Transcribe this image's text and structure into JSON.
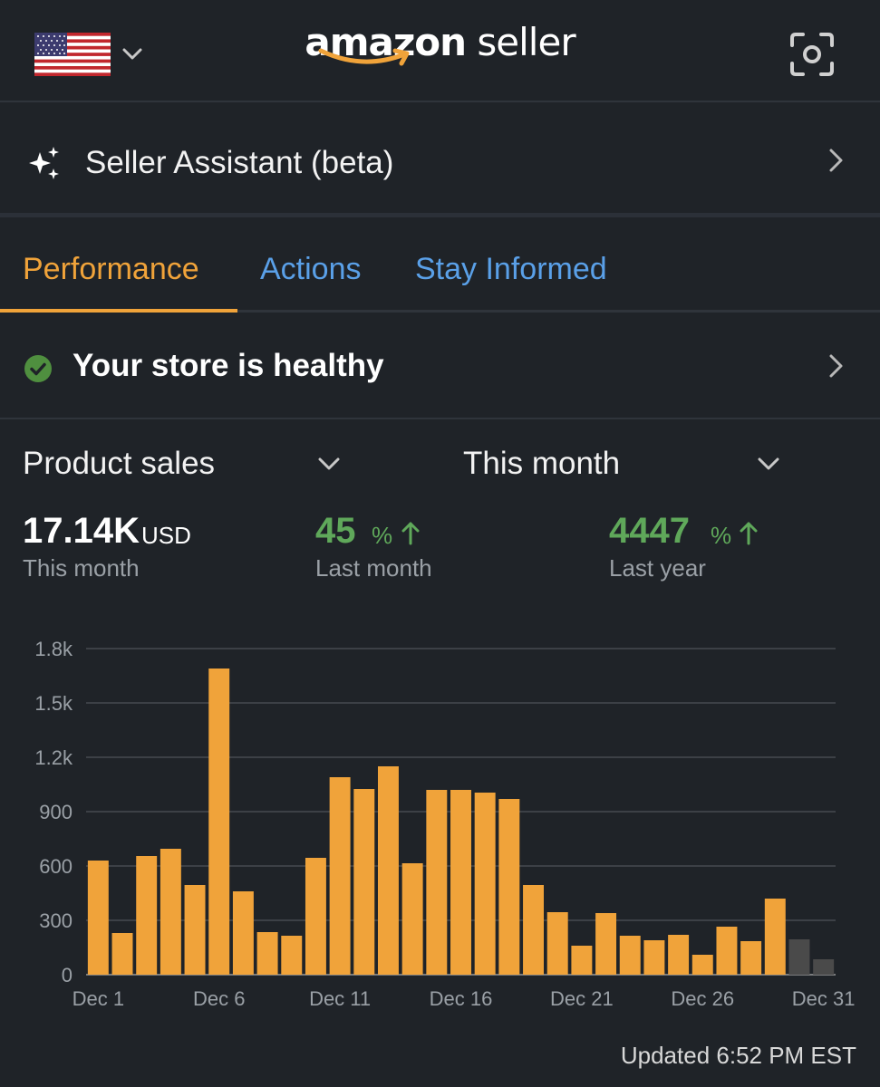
{
  "header": {
    "logo_bold": "amazon",
    "logo_light": " seller",
    "flag_icon": "us-flag-icon",
    "camera_icon": "camera-scan-icon"
  },
  "assistant": {
    "label": "Seller Assistant (beta)",
    "icon": "sparkle-icon"
  },
  "tabs": [
    {
      "label": "Performance",
      "active": true
    },
    {
      "label": "Actions",
      "active": false
    },
    {
      "label": "Stay Informed",
      "active": false
    }
  ],
  "health": {
    "label": "Your store is healthy",
    "icon": "check-circle-icon"
  },
  "filters": {
    "metric": "Product sales",
    "period": "This month"
  },
  "stats": {
    "total": {
      "value": "17.14K",
      "unit": "USD",
      "label": "This month"
    },
    "vs_last_month": {
      "value": "45",
      "unit": "%",
      "label": "Last month"
    },
    "vs_last_year": {
      "value": "4447",
      "unit": "%",
      "label": "Last year"
    }
  },
  "colors": {
    "accent": "#f0a33a",
    "link": "#5aa0e8",
    "positive": "#5fa85a",
    "bar": "#f0a33a",
    "bar_future": "#4a4a4a"
  },
  "chart_data": {
    "type": "bar",
    "title": "",
    "xlabel": "",
    "ylabel": "",
    "ylim": [
      0,
      1800
    ],
    "yticks": [
      "0",
      "300",
      "600",
      "900",
      "1.2k",
      "1.5k",
      "1.8k"
    ],
    "xtick_labels": [
      "Dec 1",
      "Dec 6",
      "Dec 11",
      "Dec 16",
      "Dec 21",
      "Dec 26",
      "Dec 31"
    ],
    "grid": true,
    "categories": [
      "Dec 1",
      "Dec 2",
      "Dec 3",
      "Dec 4",
      "Dec 5",
      "Dec 6",
      "Dec 7",
      "Dec 8",
      "Dec 9",
      "Dec 10",
      "Dec 11",
      "Dec 12",
      "Dec 13",
      "Dec 14",
      "Dec 15",
      "Dec 16",
      "Dec 17",
      "Dec 18",
      "Dec 19",
      "Dec 20",
      "Dec 21",
      "Dec 22",
      "Dec 23",
      "Dec 24",
      "Dec 25",
      "Dec 26",
      "Dec 27",
      "Dec 28",
      "Dec 29",
      "Dec 30",
      "Dec 31"
    ],
    "values": [
      630,
      230,
      655,
      695,
      495,
      1690,
      460,
      235,
      215,
      645,
      1090,
      1025,
      1150,
      615,
      1020,
      1020,
      1005,
      970,
      495,
      345,
      160,
      340,
      215,
      190,
      220,
      110,
      265,
      185,
      420,
      195,
      85
    ],
    "future_from_index": 29
  },
  "footer": {
    "updated": "Updated 6:52 PM EST"
  }
}
